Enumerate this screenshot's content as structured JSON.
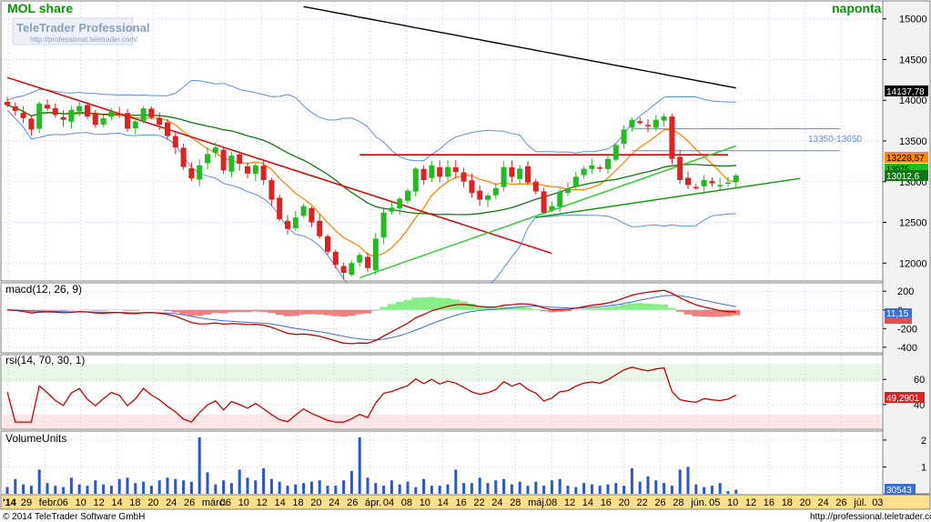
{
  "header": {
    "title": "MOL share",
    "period": "naponta",
    "logo_main": "TeleTrader Professional",
    "logo_url": "http://professional.teletrader.com/"
  },
  "footer": {
    "copyright": "© 2014 TeleTrader Software GmbH",
    "url": "http://professional.teletrader.com"
  },
  "colors": {
    "up_candle": "#22bb22",
    "down_candle": "#dd2222",
    "bollinger": "#5b8ee6",
    "sma_short": "#ff8800",
    "sma_mid": "#117711",
    "sma_long": "#000000",
    "resistance": "#dd0000",
    "support": "#33cc33",
    "title_green": "#009900"
  },
  "chart_data": [
    {
      "type": "candlestick",
      "title": "MOL share",
      "pane": "price",
      "y_ticks": [
        12000,
        12500,
        13000,
        13500,
        14000,
        14500,
        15000
      ],
      "ylim": [
        11780,
        15220
      ],
      "price_labels": [
        "14137,78",
        "13228,57",
        "13075",
        "13012,6"
      ],
      "annotation": "13350-13650",
      "x_ticks": [
        "'14",
        "29",
        "febr.",
        "06",
        "10",
        "12",
        "14",
        "18",
        "20",
        "24",
        "26",
        "márc.",
        "06",
        "10",
        "12",
        "14",
        "18",
        "20",
        "24",
        "26",
        "ápr.",
        "04",
        "08",
        "10",
        "14",
        "16",
        "22",
        "24",
        "28",
        "máj.",
        "08",
        "12",
        "14",
        "16",
        "20",
        "22",
        "26",
        "28",
        "jún.",
        "05",
        "10",
        "12",
        "16",
        "18",
        "20",
        "24",
        "26",
        "júl.",
        "03"
      ],
      "closes": [
        13940,
        13870,
        13780,
        13640,
        13960,
        13900,
        13820,
        13760,
        13880,
        13930,
        13800,
        13700,
        13780,
        13860,
        13820,
        13650,
        13740,
        13900,
        13790,
        13700,
        13560,
        13420,
        13180,
        13040,
        13200,
        13340,
        13420,
        13140,
        13320,
        13220,
        13100,
        13200,
        13020,
        12780,
        12540,
        12420,
        12560,
        12700,
        12500,
        12330,
        12140,
        11980,
        11880,
        12000,
        12100,
        11940,
        12300,
        12620,
        12680,
        12790,
        12890,
        13160,
        13020,
        13200,
        13060,
        13180,
        13120,
        13000,
        12860,
        12780,
        12830,
        12920,
        13180,
        13060,
        13160,
        12990,
        12880,
        12620,
        12700,
        12880,
        12920,
        13060,
        13160,
        13200,
        13170,
        13280,
        13450,
        13640,
        13760,
        13720,
        13690,
        13760,
        13800,
        13280,
        13020,
        12960,
        12930,
        13020,
        12980,
        12960,
        12990,
        13075
      ],
      "volume_values": [
        0.25,
        0.55,
        0.35,
        0.3,
        0.9,
        0.4,
        0.3,
        0.25,
        0.6,
        0.35,
        0.3,
        0.5,
        0.35,
        0.3,
        0.55,
        0.6,
        0.4,
        0.45,
        0.3,
        0.5,
        0.6,
        0.55,
        0.5,
        0.45,
        2.1,
        0.8,
        0.35,
        0.5,
        0.4,
        0.9,
        0.6,
        0.5,
        0.95,
        0.55,
        0.45,
        0.3,
        0.35,
        0.4,
        0.45,
        0.5,
        0.3,
        0.3,
        0.5,
        0.85,
        2.1,
        0.6,
        0.4,
        0.3,
        0.5,
        0.35,
        0.45,
        0.25,
        0.55,
        0.3,
        0.3,
        0.35,
        0.9,
        0.4,
        0.4,
        0.6,
        0.4,
        0.5,
        0.55,
        0.35,
        0.45,
        0.3,
        0.45,
        0.3,
        0.5,
        0.55,
        0.3,
        0.25,
        0.4,
        0.35,
        0.3,
        0.35,
        0.4,
        0.3,
        0.95,
        0.45,
        0.65,
        0.5,
        0.4,
        0.3,
        0.9,
        1.0,
        0.35,
        0.25,
        0.3,
        0.4,
        0.1,
        0.15
      ]
    },
    {
      "type": "line",
      "title": "macd(12, 26, 9)",
      "pane": "macd",
      "y_ticks": [
        200,
        0,
        -200,
        -400
      ],
      "ylim": [
        -450,
        280
      ],
      "value_label": "11,15"
    },
    {
      "type": "line",
      "title": "rsi(14, 70, 30, 1)",
      "pane": "rsi",
      "y_ticks": [
        60,
        40
      ],
      "ylim": [
        21,
        79
      ],
      "value_label": "49,2901"
    },
    {
      "type": "bar",
      "title": "VolumeUnits",
      "pane": "volume",
      "y_ticks": [
        2,
        1
      ],
      "ylim": [
        0,
        2.3
      ],
      "value_label": "30543"
    }
  ]
}
